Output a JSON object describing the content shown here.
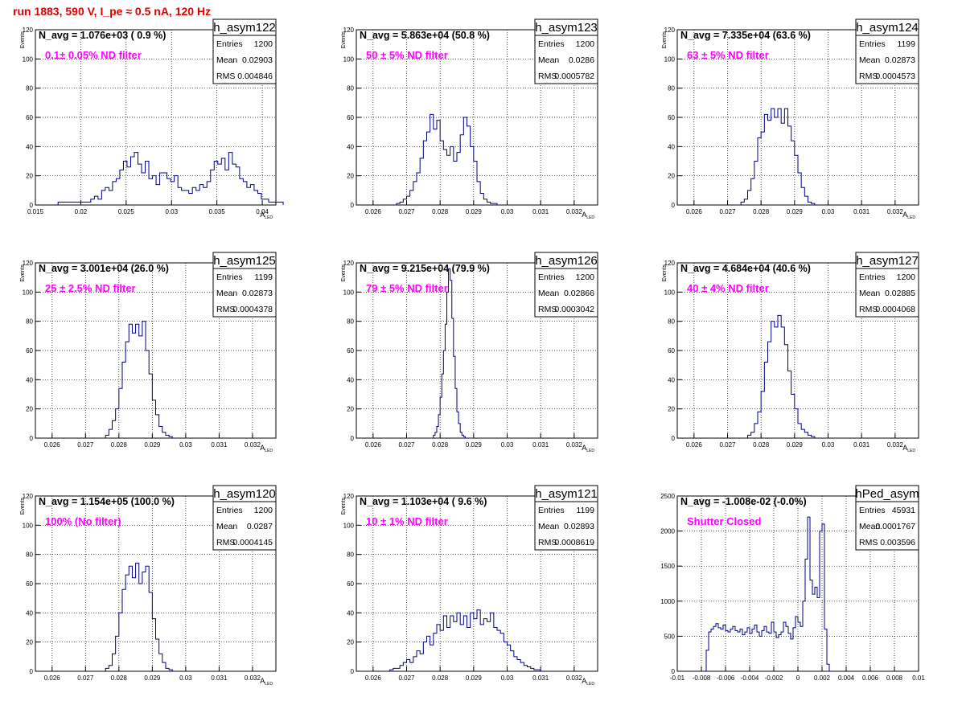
{
  "header": {
    "title": "run 1883,   590 V, I_pe ≈ 0.5 nA, 120 Hz"
  },
  "common": {
    "ylabel": "Events",
    "stats_labels": [
      "Entries",
      "Mean",
      "RMS"
    ]
  },
  "chart_data": [
    {
      "type": "bar",
      "hist_name": "h_asym122",
      "stats": {
        "entries": "1200",
        "mean": "0.02903",
        "rms": "0.004846"
      },
      "navg": "N_avg = 1.076e+03 ( 0.9 %)",
      "filter": "0.1± 0.05% ND filter",
      "xlabel": "A",
      "xlabel_sub": "LED",
      "ylabel": "Events",
      "xlim": [
        0.015,
        0.0415
      ],
      "ylim": [
        0,
        120
      ],
      "xticks": [
        0.015,
        0.02,
        0.025,
        0.03,
        0.035,
        0.04
      ],
      "xtick_labels": [
        "0.015",
        "0.02",
        "0.025",
        "0.03",
        "0.035",
        "0.04"
      ],
      "yticks": [
        0,
        20,
        40,
        60,
        80,
        100,
        120
      ],
      "ytick_labels": [
        "0",
        "20",
        "40",
        "60",
        "80",
        "100",
        "120"
      ],
      "bin_start": 0.0175,
      "bin_width": 0.0004,
      "values": [
        2,
        2,
        2,
        2,
        2,
        2,
        2,
        2,
        2,
        4,
        6,
        4,
        10,
        12,
        10,
        16,
        18,
        24,
        30,
        26,
        33,
        36,
        28,
        22,
        30,
        18,
        20,
        14,
        22,
        22,
        18,
        16,
        20,
        12,
        10,
        10,
        8,
        12,
        10,
        14,
        12,
        16,
        24,
        30,
        28,
        32,
        24,
        36,
        28,
        26,
        18,
        16,
        12,
        14,
        10,
        8,
        4,
        4,
        2,
        2,
        2,
        2
      ]
    },
    {
      "type": "bar",
      "hist_name": "h_asym123",
      "stats": {
        "entries": "1200",
        "mean": "0.0286",
        "rms": "0.0005782"
      },
      "navg": "N_avg = 5.863e+04 (50.8 %)",
      "filter": "50 ± 5% ND filter",
      "xlabel": "A",
      "xlabel_sub": "LED",
      "ylabel": "Events",
      "xlim": [
        0.0255,
        0.0327
      ],
      "ylim": [
        0,
        120
      ],
      "xticks": [
        0.026,
        0.027,
        0.028,
        0.029,
        0.03,
        0.031,
        0.032
      ],
      "xtick_labels": [
        "0.026",
        "0.027",
        "0.028",
        "0.029",
        "0.03",
        "0.031",
        "0.032"
      ],
      "yticks": [
        0,
        20,
        40,
        60,
        80,
        100,
        120
      ],
      "ytick_labels": [
        "0",
        "20",
        "40",
        "60",
        "80",
        "100",
        "120"
      ],
      "bin_start": 0.0267,
      "bin_width": 0.0001,
      "values": [
        1,
        2,
        4,
        6,
        10,
        16,
        22,
        32,
        44,
        50,
        62,
        52,
        58,
        44,
        38,
        34,
        40,
        30,
        36,
        48,
        60,
        54,
        40,
        30,
        16,
        8,
        4,
        2,
        1,
        1
      ]
    },
    {
      "type": "bar",
      "hist_name": "h_asym124",
      "stats": {
        "entries": "1199",
        "mean": "0.02873",
        "rms": "0.0004573"
      },
      "navg": "N_avg = 7.335e+04 (63.6 %)",
      "filter": "63 ± 5% ND filter",
      "xlabel": "A",
      "xlabel_sub": "LED",
      "ylabel": "Events",
      "xlim": [
        0.0255,
        0.0327
      ],
      "ylim": [
        0,
        120
      ],
      "xticks": [
        0.026,
        0.027,
        0.028,
        0.029,
        0.03,
        0.031,
        0.032
      ],
      "xtick_labels": [
        "0.026",
        "0.027",
        "0.028",
        "0.029",
        "0.03",
        "0.031",
        "0.032"
      ],
      "yticks": [
        0,
        20,
        40,
        60,
        80,
        100,
        120
      ],
      "ytick_labels": [
        "0",
        "20",
        "40",
        "60",
        "80",
        "100",
        "120"
      ],
      "bin_start": 0.0274,
      "bin_width": 0.0001,
      "values": [
        2,
        4,
        10,
        18,
        30,
        46,
        50,
        62,
        58,
        66,
        60,
        66,
        56,
        66,
        54,
        44,
        34,
        22,
        12,
        6,
        2,
        1
      ]
    },
    {
      "type": "bar",
      "hist_name": "h_asym125",
      "stats": {
        "entries": "1199",
        "mean": "0.02873",
        "rms": "0.0004378"
      },
      "navg": "N_avg = 3.001e+04 (26.0 %)",
      "filter": "25 ± 2.5% ND filter",
      "xlabel": "A",
      "xlabel_sub": "LED",
      "ylabel": "Events",
      "xlim": [
        0.0255,
        0.0327
      ],
      "ylim": [
        0,
        120
      ],
      "xticks": [
        0.026,
        0.027,
        0.028,
        0.029,
        0.03,
        0.031,
        0.032
      ],
      "xtick_labels": [
        "0.026",
        "0.027",
        "0.028",
        "0.029",
        "0.03",
        "0.031",
        "0.032"
      ],
      "yticks": [
        0,
        20,
        40,
        60,
        80,
        100,
        120
      ],
      "ytick_labels": [
        "0",
        "20",
        "40",
        "60",
        "80",
        "100",
        "120"
      ],
      "bin_start": 0.0276,
      "bin_width": 0.0001,
      "values": [
        2,
        6,
        12,
        20,
        34,
        52,
        66,
        78,
        72,
        78,
        70,
        80,
        60,
        44,
        26,
        16,
        8,
        4,
        2,
        1
      ]
    },
    {
      "type": "bar",
      "hist_name": "h_asym126",
      "stats": {
        "entries": "1200",
        "mean": "0.02866",
        "rms": "0.0003042"
      },
      "navg": "N_avg = 9.215e+04 (79.9 %)",
      "filter": "79 ± 5% ND filter",
      "xlabel": "A",
      "xlabel_sub": "LED",
      "ylabel": "Events",
      "xlim": [
        0.0255,
        0.0327
      ],
      "ylim": [
        0,
        120
      ],
      "xticks": [
        0.026,
        0.027,
        0.028,
        0.029,
        0.03,
        0.031,
        0.032
      ],
      "xtick_labels": [
        "0.026",
        "0.027",
        "0.028",
        "0.029",
        "0.03",
        "0.031",
        "0.032"
      ],
      "yticks": [
        0,
        20,
        40,
        60,
        80,
        100,
        120
      ],
      "ytick_labels": [
        "0",
        "20",
        "40",
        "60",
        "80",
        "100",
        "120"
      ],
      "bin_start": 0.0278,
      "bin_width": 5e-05,
      "values": [
        2,
        4,
        8,
        16,
        28,
        44,
        60,
        78,
        100,
        116,
        108,
        82,
        56,
        34,
        18,
        10,
        4,
        2,
        1
      ]
    },
    {
      "type": "bar",
      "hist_name": "h_asym127",
      "stats": {
        "entries": "1200",
        "mean": "0.02885",
        "rms": "0.0004068"
      },
      "navg": "N_avg = 4.684e+04 (40.6 %)",
      "filter": "40 ± 4% ND filter",
      "xlabel": "A",
      "xlabel_sub": "LED",
      "ylabel": "Events",
      "xlim": [
        0.0255,
        0.0327
      ],
      "ylim": [
        0,
        120
      ],
      "xticks": [
        0.026,
        0.027,
        0.028,
        0.029,
        0.03,
        0.031,
        0.032
      ],
      "xtick_labels": [
        "0.026",
        "0.027",
        "0.028",
        "0.029",
        "0.03",
        "0.031",
        "0.032"
      ],
      "yticks": [
        0,
        20,
        40,
        60,
        80,
        100,
        120
      ],
      "ytick_labels": [
        "0",
        "20",
        "40",
        "60",
        "80",
        "100",
        "120"
      ],
      "bin_start": 0.0276,
      "bin_width": 0.0001,
      "values": [
        2,
        4,
        10,
        18,
        32,
        52,
        66,
        80,
        76,
        84,
        76,
        64,
        46,
        30,
        20,
        10,
        6,
        4,
        2,
        1
      ]
    },
    {
      "type": "bar",
      "hist_name": "h_asym120",
      "stats": {
        "entries": "1200",
        "mean": "0.0287",
        "rms": "0.0004145"
      },
      "navg": "N_avg = 1.154e+05 (100.0 %)",
      "filter": "100% (No filter)",
      "xlabel": "A",
      "xlabel_sub": "LED",
      "ylabel": "Events",
      "xlim": [
        0.0255,
        0.0327
      ],
      "ylim": [
        0,
        120
      ],
      "xticks": [
        0.026,
        0.027,
        0.028,
        0.029,
        0.03,
        0.031,
        0.032
      ],
      "xtick_labels": [
        "0.026",
        "0.027",
        "0.028",
        "0.029",
        "0.03",
        "0.031",
        "0.032"
      ],
      "yticks": [
        0,
        20,
        40,
        60,
        80,
        100,
        120
      ],
      "ytick_labels": [
        "0",
        "20",
        "40",
        "60",
        "80",
        "100",
        "120"
      ],
      "bin_start": 0.0276,
      "bin_width": 0.0001,
      "values": [
        2,
        4,
        12,
        24,
        40,
        56,
        66,
        72,
        64,
        74,
        60,
        68,
        72,
        54,
        36,
        22,
        12,
        6,
        2,
        1
      ]
    },
    {
      "type": "bar",
      "hist_name": "h_asym121",
      "stats": {
        "entries": "1199",
        "mean": "0.02893",
        "rms": "0.0008619"
      },
      "navg": "N_avg = 1.103e+04 ( 9.6 %)",
      "filter": "10 ± 1% ND filter",
      "xlabel": "A",
      "xlabel_sub": "LED",
      "ylabel": "Events",
      "xlim": [
        0.0255,
        0.0327
      ],
      "ylim": [
        0,
        120
      ],
      "xticks": [
        0.026,
        0.027,
        0.028,
        0.029,
        0.03,
        0.031,
        0.032
      ],
      "xtick_labels": [
        "0.026",
        "0.027",
        "0.028",
        "0.029",
        "0.03",
        "0.031",
        "0.032"
      ],
      "yticks": [
        0,
        20,
        40,
        60,
        80,
        100,
        120
      ],
      "ytick_labels": [
        "0",
        "20",
        "40",
        "60",
        "80",
        "100",
        "120"
      ],
      "bin_start": 0.0265,
      "bin_width": 0.0001,
      "values": [
        1,
        2,
        2,
        4,
        6,
        8,
        6,
        10,
        14,
        12,
        20,
        24,
        18,
        26,
        32,
        28,
        38,
        30,
        38,
        34,
        40,
        32,
        38,
        30,
        40,
        36,
        42,
        32,
        36,
        34,
        40,
        30,
        28,
        26,
        20,
        18,
        14,
        10,
        8,
        6,
        4,
        3,
        2,
        1,
        1
      ]
    },
    {
      "type": "bar",
      "hist_name": "hPed_asym",
      "stats": {
        "entries": "45931",
        "mean": "0.0001767",
        "rms": "0.003596"
      },
      "navg": "N_avg = -1.008e-02 (-0.0%)",
      "filter": "Shutter Closed",
      "xlabel": "",
      "xlabel_sub": "",
      "ylabel": "",
      "xlim": [
        -0.01,
        0.01
      ],
      "ylim": [
        0,
        2500
      ],
      "xticks": [
        -0.01,
        -0.008,
        -0.006,
        -0.004,
        -0.002,
        0,
        0.002,
        0.004,
        0.006,
        0.008,
        0.01
      ],
      "xtick_labels": [
        "-0.01",
        "-0.008",
        "-0.006",
        "-0.004",
        "-0.002",
        "0",
        "0.002",
        "0.004",
        "0.006",
        "0.008",
        "0.01"
      ],
      "yticks": [
        0,
        500,
        1000,
        1500,
        2000,
        2500
      ],
      "ytick_labels": [
        "0",
        "500",
        "1000",
        "1500",
        "2000",
        "2500"
      ],
      "bin_start": -0.0076,
      "bin_width": 0.0002,
      "values": [
        300,
        560,
        600,
        640,
        680,
        620,
        600,
        660,
        580,
        560,
        600,
        640,
        580,
        560,
        600,
        520,
        560,
        620,
        540,
        600,
        660,
        560,
        500,
        580,
        640,
        560,
        540,
        700,
        560,
        480,
        520,
        560,
        700,
        640,
        540,
        460,
        620,
        780,
        700,
        640,
        1000,
        1600,
        2200,
        1300,
        1100,
        1200,
        1050,
        2000,
        2100,
        600,
        100
      ]
    }
  ]
}
